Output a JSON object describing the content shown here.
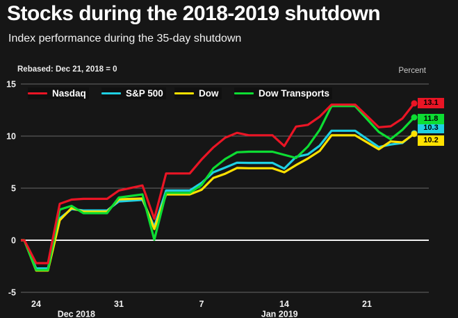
{
  "header": {
    "title": "Stocks during the 2018-2019 shutdown",
    "subtitle": "Index performance during the 35-day shutdown"
  },
  "chart_data": {
    "type": "line",
    "title": "Stocks during the 2018-2019 shutdown",
    "subtitle": "Index performance during the 35-day shutdown",
    "rebase_note": "Rebased: Dec 21, 2018 = 0",
    "ylabel": "Percent",
    "grid": "horizontal",
    "legend_position": "top",
    "x_unit": "calendar days since Dec 21, 2018",
    "days": [
      0,
      2,
      3,
      4,
      5,
      6,
      7,
      9,
      10,
      12,
      13,
      14,
      16,
      17,
      18,
      19,
      20,
      21,
      23,
      24,
      25,
      26,
      27,
      28,
      30,
      32,
      33,
      34,
      35
    ],
    "y_axis": {
      "ticks": [
        15,
        10,
        5,
        0,
        -5
      ],
      "range": [
        -5,
        15
      ]
    },
    "x_axis": {
      "ticks": [
        {
          "label": "24",
          "day": 3
        },
        {
          "label": "31",
          "day": 10
        },
        {
          "label": "7",
          "day": 17
        },
        {
          "label": "14",
          "day": 24
        },
        {
          "label": "21",
          "day": 31
        }
      ],
      "months": [
        {
          "label": "Dec 2018",
          "day": 6.4
        },
        {
          "label": "Jan 2019",
          "day": 23.6
        }
      ]
    },
    "series": [
      {
        "name": "Nasdaq",
        "color": "#ea1525",
        "end_label": "13.1",
        "values": [
          0,
          0,
          -2.2,
          -2.2,
          3.5,
          3.9,
          3.97,
          3.97,
          4.77,
          5.26,
          2.06,
          6.41,
          6.41,
          7.75,
          8.91,
          9.85,
          10.31,
          10.08,
          10.08,
          9.05,
          10.91,
          11.08,
          11.87,
          13.02,
          13.02,
          10.85,
          10.94,
          11.69,
          13.14
        ]
      },
      {
        "name": "S&P 500",
        "color": "#1fd0e3",
        "end_label": "10.3",
        "values": [
          0,
          0,
          -2.71,
          -2.71,
          2.11,
          2.99,
          2.86,
          2.86,
          3.73,
          3.87,
          1.29,
          4.77,
          4.77,
          5.51,
          6.53,
          6.97,
          7.45,
          7.43,
          7.43,
          6.87,
          8.01,
          8.25,
          9.08,
          10.51,
          10.51,
          8.95,
          9.19,
          9.34,
          10.27
        ]
      },
      {
        "name": "Dow",
        "color": "#ffe100",
        "end_label": "10.2",
        "values": [
          0,
          0,
          -2.91,
          -2.91,
          1.93,
          3.09,
          2.75,
          2.75,
          3.93,
          4.01,
          1.07,
          4.4,
          4.4,
          4.84,
          5.98,
          6.39,
          6.94,
          6.91,
          6.91,
          6.53,
          7.22,
          7.85,
          8.58,
          10.07,
          10.07,
          8.73,
          9.49,
          9.39,
          10.21
        ]
      },
      {
        "name": "Dow Transports",
        "color": "#0ddd33",
        "end_label": "11.8",
        "values": [
          0,
          0,
          -2.85,
          -2.85,
          2.95,
          3.3,
          2.6,
          2.6,
          4.1,
          4.4,
          0.05,
          4.55,
          4.55,
          5.3,
          6.9,
          7.8,
          8.45,
          8.5,
          8.5,
          8.2,
          7.9,
          9.0,
          10.6,
          12.88,
          12.88,
          10.4,
          9.7,
          10.6,
          11.8
        ]
      }
    ]
  }
}
